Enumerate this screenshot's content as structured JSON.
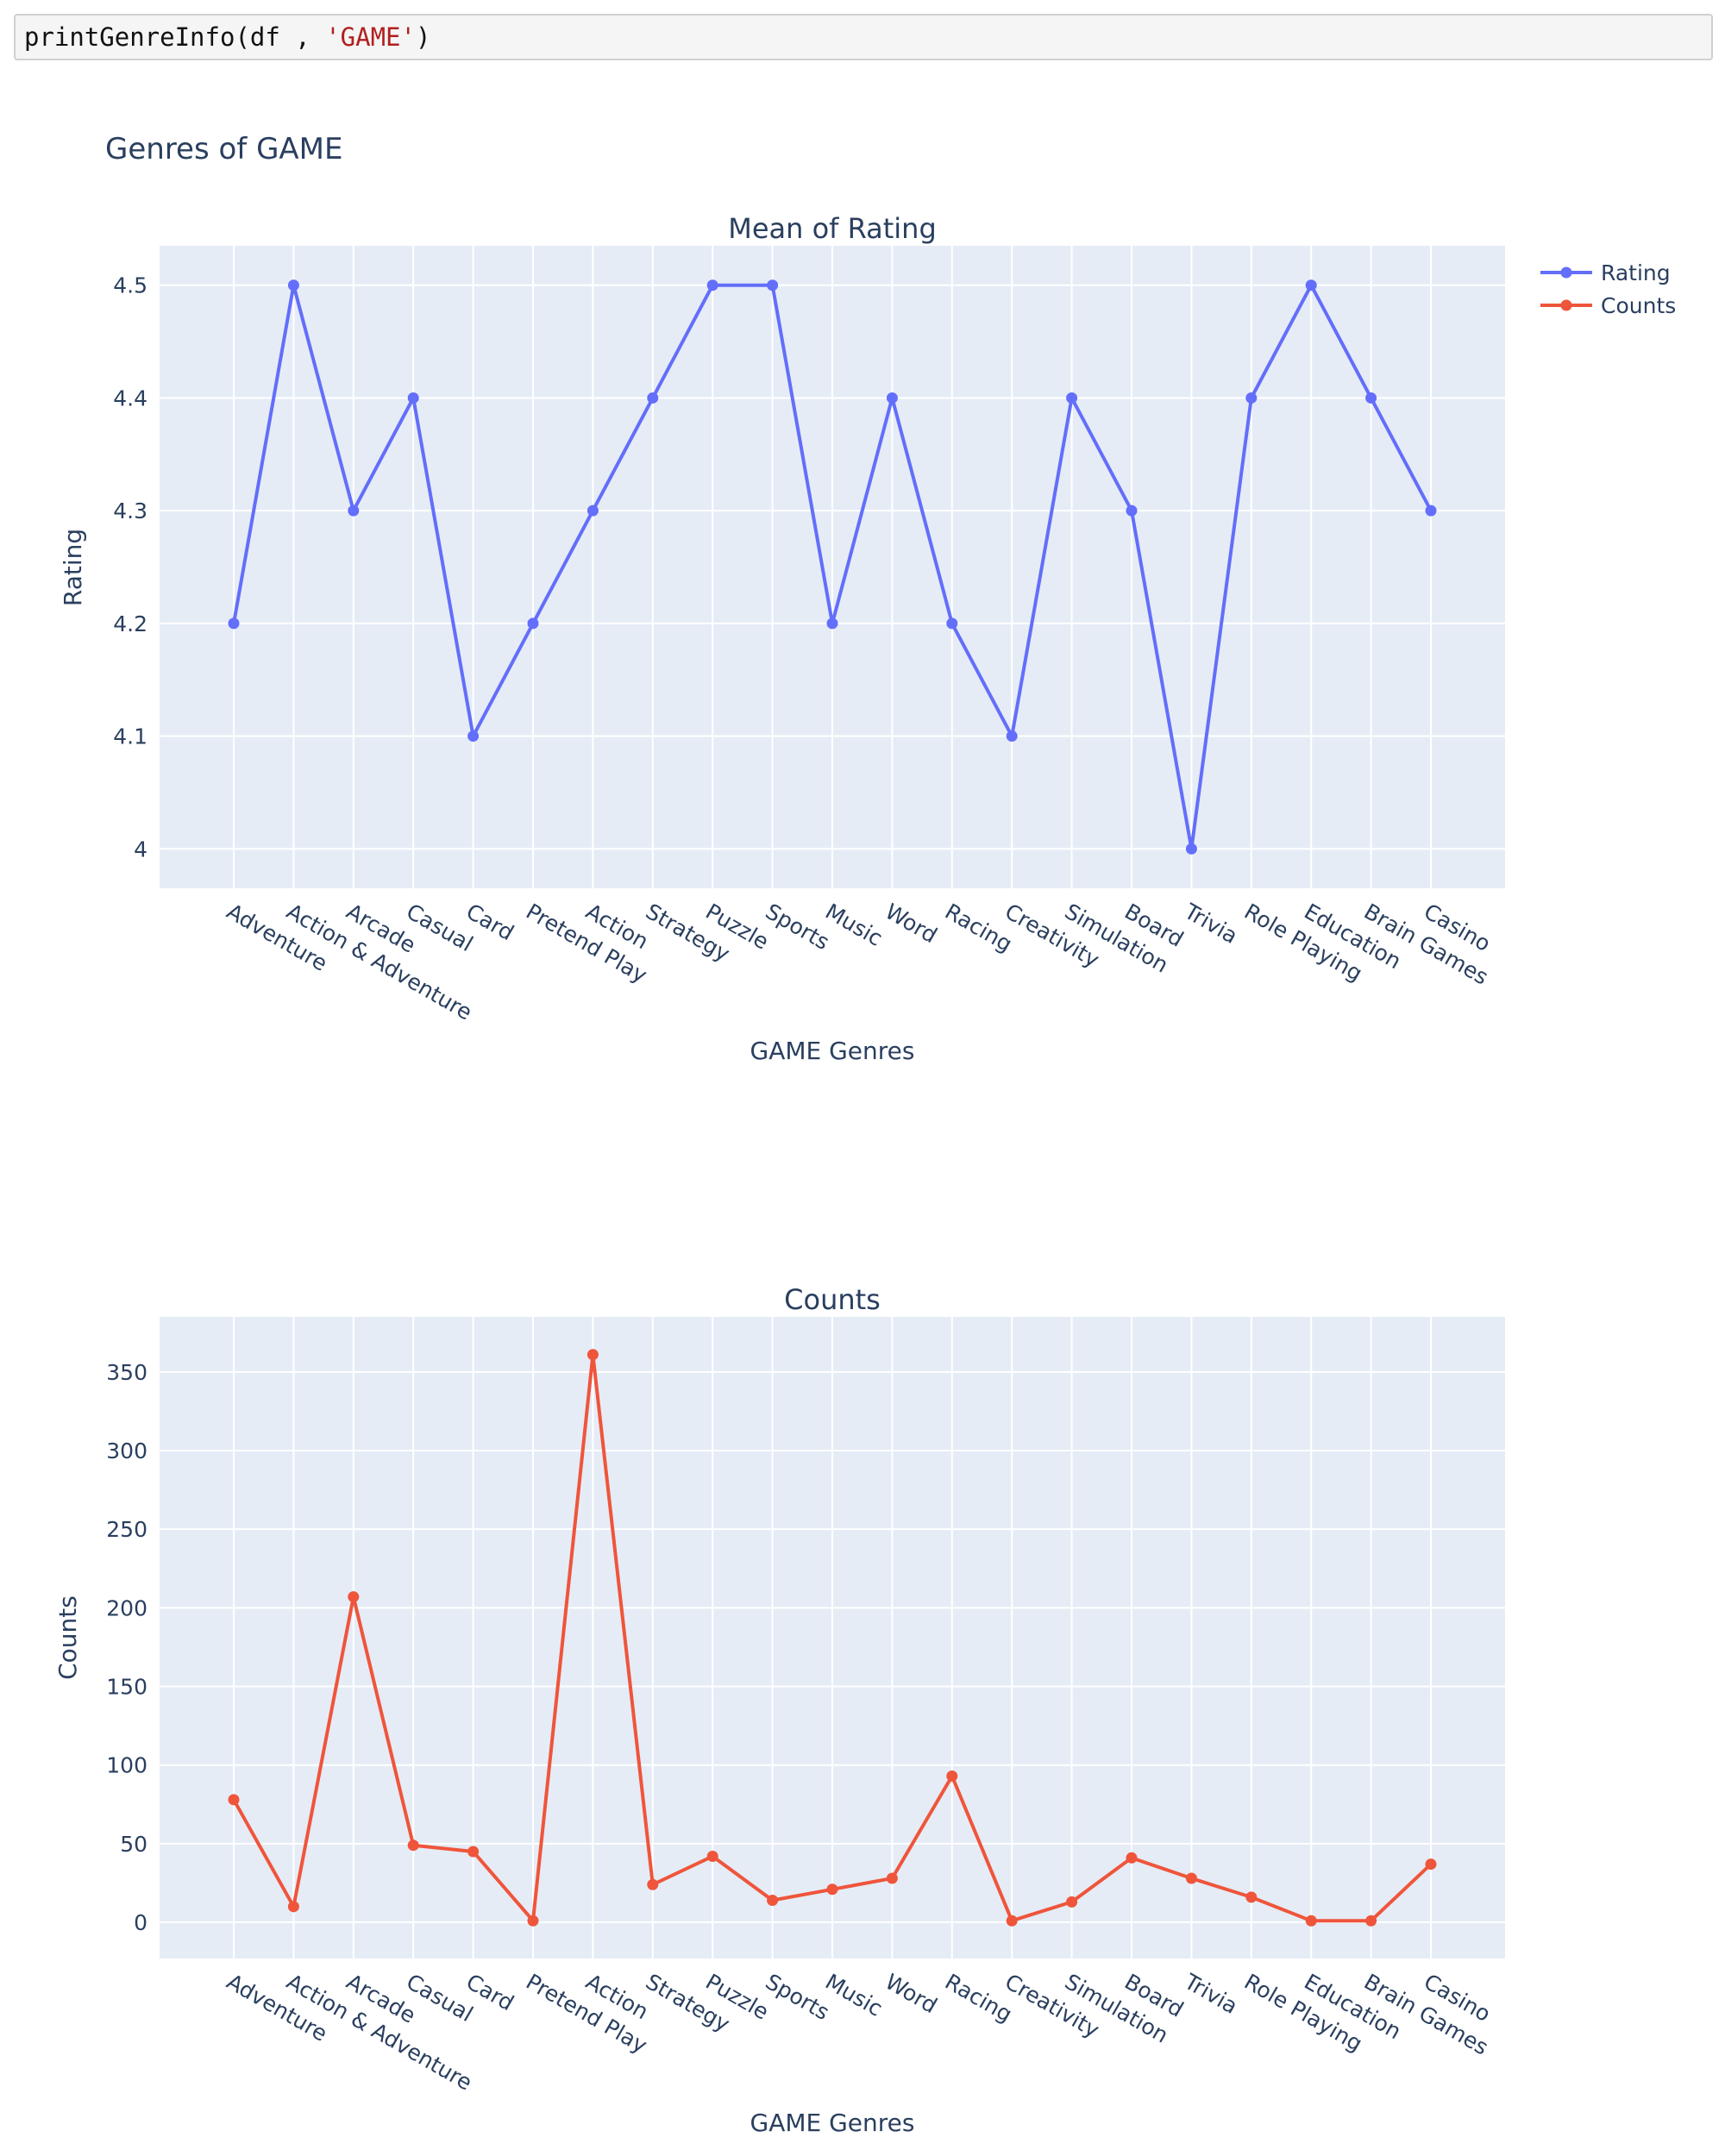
{
  "code_cell": {
    "func": "printGenreInfo",
    "args_prefix": "(df , ",
    "arg_string": "'GAME'",
    "args_suffix": ")"
  },
  "figure": {
    "title": "Genres of GAME"
  },
  "colors": {
    "rating": "#636efa",
    "counts": "#ef553b",
    "plot_bg": "#e5ecf6",
    "text": "#2a3f5f",
    "grid": "#ffffff"
  },
  "legend": {
    "placement": "top-right",
    "entries": [
      "Rating",
      "Counts"
    ]
  },
  "chart_data": [
    {
      "type": "line",
      "title": "Mean of Rating",
      "xlabel": "GAME Genres",
      "ylabel": "Rating",
      "categories": [
        "Adventure",
        "Action & Adventure",
        "Arcade",
        "Casual",
        "Card",
        "Pretend Play",
        "Action",
        "Strategy",
        "Puzzle",
        "Sports",
        "Music",
        "Word",
        "Racing",
        "Creativity",
        "Simulation",
        "Board",
        "Trivia",
        "Role Playing",
        "Education",
        "Brain Games",
        "Casino"
      ],
      "series": [
        {
          "name": "Rating",
          "values": [
            4.2,
            4.5,
            4.3,
            4.4,
            4.1,
            4.2,
            4.3,
            4.4,
            4.5,
            4.5,
            4.2,
            4.4,
            4.2,
            4.1,
            4.4,
            4.3,
            4.0,
            4.4,
            4.5,
            4.4,
            4.3
          ]
        }
      ],
      "ylim": [
        3.965,
        4.535
      ],
      "yticks": [
        4.0,
        4.1,
        4.2,
        4.3,
        4.4,
        4.5
      ],
      "ytick_labels": [
        "4",
        "4.1",
        "4.2",
        "4.3",
        "4.4",
        "4.5"
      ],
      "grid": true
    },
    {
      "type": "line",
      "title": "Counts",
      "xlabel": "GAME Genres",
      "ylabel": "Counts",
      "categories": [
        "Adventure",
        "Action & Adventure",
        "Arcade",
        "Casual",
        "Card",
        "Pretend Play",
        "Action",
        "Strategy",
        "Puzzle",
        "Sports",
        "Music",
        "Word",
        "Racing",
        "Creativity",
        "Simulation",
        "Board",
        "Trivia",
        "Role Playing",
        "Education",
        "Brain Games",
        "Casino"
      ],
      "series": [
        {
          "name": "Counts",
          "values": [
            78,
            10,
            207,
            49,
            45,
            1,
            361,
            24,
            42,
            14,
            21,
            28,
            93,
            1,
            13,
            41,
            28,
            16,
            1,
            1,
            37
          ]
        }
      ],
      "ylim": [
        -23,
        385
      ],
      "yticks": [
        0,
        50,
        100,
        150,
        200,
        250,
        300,
        350
      ],
      "ytick_labels": [
        "0",
        "50",
        "100",
        "150",
        "200",
        "250",
        "300",
        "350"
      ],
      "grid": true
    }
  ]
}
